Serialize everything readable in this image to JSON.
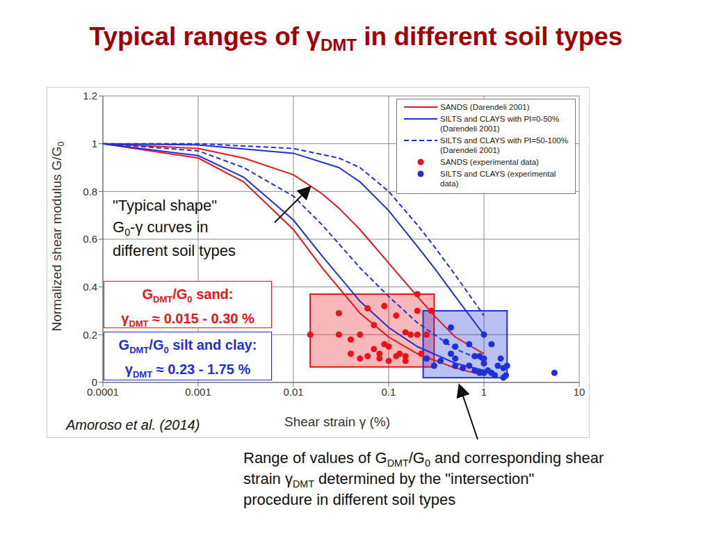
{
  "chart_data": {
    "type": "line",
    "title": [
      "Typical ranges of γ",
      {
        "sub": "DMT"
      },
      " in different soil types"
    ],
    "x_label": [
      "Shear strain γ (%)"
    ],
    "y_label": [
      "Normalized shear modulus G/G",
      {
        "sub": "0"
      }
    ],
    "log": "x",
    "grid": true,
    "legend": "upper right",
    "xlim": [
      0.0001,
      10
    ],
    "xticks": [
      0.0001,
      0.001,
      0.01,
      0.1,
      1,
      10
    ],
    "ylim": [
      0,
      1.2
    ],
    "yticks": [
      0,
      0.2,
      0.4,
      0.6,
      0.8,
      1,
      1.2
    ],
    "series": [
      {
        "name": "SANDS (Darendeli 2001)",
        "type": "line",
        "color": "#e8141b",
        "line_style": "solid",
        "x": [
          0.0001,
          0.001,
          0.003,
          0.01,
          0.02,
          0.03,
          0.05,
          0.1,
          0.2,
          0.3,
          0.5,
          1,
          null,
          0.0001,
          0.001,
          0.003,
          0.01,
          0.02,
          0.05,
          0.1,
          0.2,
          0.5,
          1
        ],
        "values": [
          1,
          0.98,
          0.94,
          0.87,
          0.79,
          0.73,
          0.64,
          0.5,
          0.36,
          0.28,
          0.19,
          0.12,
          null,
          1,
          0.94,
          0.84,
          0.64,
          0.48,
          0.29,
          0.19,
          0.12,
          0.06,
          0.03
        ]
      },
      {
        "name": "SILTS and CLAYS with PI=0-50% (Darendeli 2001)",
        "type": "line",
        "color": "#1f2fd8",
        "line_style": "solid",
        "x": [
          0.0001,
          0.001,
          0.01,
          0.03,
          0.05,
          0.1,
          0.2,
          0.3,
          0.5,
          1,
          null,
          0.0001,
          0.001,
          0.003,
          0.01,
          0.02,
          0.05,
          0.1,
          0.2,
          0.5,
          1
        ],
        "values": [
          1,
          0.995,
          0.96,
          0.9,
          0.84,
          0.72,
          0.57,
          0.48,
          0.36,
          0.2,
          null,
          1,
          0.95,
          0.86,
          0.68,
          0.53,
          0.34,
          0.23,
          0.15,
          0.08,
          0.05
        ]
      },
      {
        "name": "SILTS and CLAYS with PI=50-100% (Darendeli 2001)",
        "type": "line",
        "color": "#1f2fd8",
        "line_style": "dashed",
        "x": [
          0.0001,
          0.001,
          0.01,
          0.03,
          0.05,
          0.1,
          0.2,
          0.3,
          0.5,
          1,
          null,
          0.0001,
          0.001,
          0.003,
          0.01,
          0.02,
          0.05,
          0.1,
          0.2,
          0.5,
          1
        ],
        "values": [
          1,
          1,
          0.98,
          0.94,
          0.9,
          0.8,
          0.66,
          0.57,
          0.45,
          0.28,
          null,
          1,
          0.97,
          0.9,
          0.78,
          0.66,
          0.48,
          0.36,
          0.25,
          0.14,
          0.09
        ]
      },
      {
        "name": "SANDS (experimental data)",
        "type": "scatter",
        "color": "#e8141b",
        "marker": "circle",
        "x": [
          0.015,
          0.03,
          0.03,
          0.04,
          0.04,
          0.05,
          0.05,
          0.06,
          0.06,
          0.07,
          0.07,
          0.08,
          0.08,
          0.09,
          0.09,
          0.1,
          0.1,
          0.12,
          0.12,
          0.13,
          0.15,
          0.15,
          0.15,
          0.17,
          0.2,
          0.2,
          0.2,
          0.22,
          0.25,
          0.25,
          0.28
        ],
        "values": [
          0.2,
          0.29,
          0.2,
          0.18,
          0.12,
          0.1,
          0.2,
          0.31,
          0.11,
          0.24,
          0.14,
          0.12,
          0.1,
          0.32,
          0.16,
          0.15,
          0.09,
          0.28,
          0.11,
          0.12,
          0.21,
          0.09,
          0.11,
          0.2,
          0.37,
          0.3,
          0.2,
          0.12,
          0.2,
          0.1,
          0.3
        ]
      },
      {
        "name": "SILTS and CLAYS (experimental data)",
        "type": "scatter",
        "color": "#1f2fd8",
        "marker": "circle",
        "x": [
          0.25,
          0.3,
          0.35,
          0.4,
          0.45,
          0.45,
          0.5,
          0.5,
          0.5,
          0.6,
          0.7,
          0.7,
          0.8,
          0.8,
          0.9,
          0.9,
          1,
          1,
          1,
          1,
          1.1,
          1.2,
          1.2,
          1.3,
          1.4,
          1.5,
          1.6,
          1.6,
          1.7,
          1.75,
          5.5
        ],
        "values": [
          0.1,
          0.07,
          0.09,
          0.17,
          0.23,
          0.12,
          0.1,
          0.07,
          0.15,
          0.06,
          0.07,
          0.16,
          0.11,
          0.05,
          0.04,
          0.11,
          0.2,
          0.1,
          0.08,
          0.04,
          0.05,
          0.04,
          0.16,
          0.03,
          0.07,
          0.1,
          0.06,
          0.02,
          0.03,
          0.07,
          0.04
        ]
      }
    ],
    "areas": [
      {
        "color": "#e8141b",
        "xrange": [
          0.015,
          0.3
        ],
        "yrange": [
          0.065,
          0.37
        ]
      },
      {
        "color": "#1f2fd8",
        "xrange": [
          0.23,
          1.75
        ],
        "yrange": [
          0.02,
          0.3
        ]
      }
    ],
    "annotations": {
      "curves_note": [
        [
          "\"Typical shape\""
        ],
        [
          "G",
          {
            "sub": "0"
          },
          "-γ curves in"
        ],
        [
          "different soil types"
        ]
      ],
      "sand_box": {
        "color": "#e8141b",
        "lines": [
          [
            "G",
            {
              "sub": "DMT"
            },
            "/G",
            {
              "sub": "0"
            },
            " sand:"
          ],
          [
            "γ",
            {
              "sub": "DMT"
            },
            " ≈ 0.015 - 0.30 %"
          ]
        ]
      },
      "clay_box": {
        "color": "#1f2fd8",
        "lines": [
          [
            "G",
            {
              "sub": "DMT"
            },
            "/G",
            {
              "sub": "0"
            },
            " silt and clay:"
          ],
          [
            "γ",
            {
              "sub": "DMT"
            },
            " ≈ 0.23 - 1.75 %"
          ]
        ]
      },
      "source": "Amoroso et al. (2014)",
      "range_note": [
        [
          "Range of values of G",
          {
            "sub": "DMT"
          },
          "/G",
          {
            "sub": "0"
          },
          " and corresponding shear"
        ],
        [
          "strain γ",
          {
            "sub": "DMT"
          },
          " determined by the \"intersection\""
        ],
        [
          "procedure in different soil types"
        ]
      ]
    }
  }
}
